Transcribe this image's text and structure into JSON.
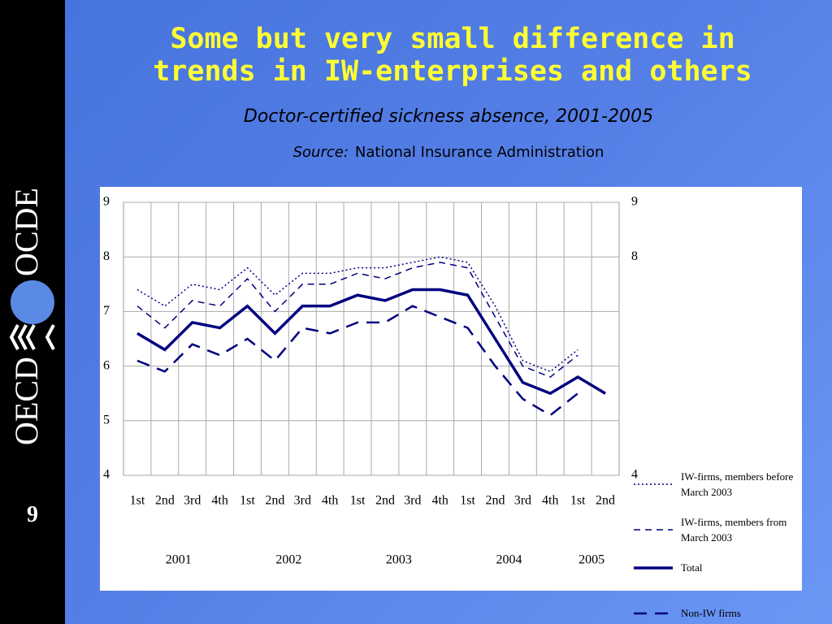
{
  "logo": {
    "left": "OECD",
    "right": "OCDE"
  },
  "slide_number": "9",
  "chart_data": {
    "type": "line",
    "title": "Some but very small difference in trends in IW-enterprises and others",
    "subtitle": "Doctor-certified sickness absence, 2001-2005",
    "source_label": "Source:",
    "source": "National Insurance Administration",
    "category_groups": [
      {
        "name": "2001",
        "categories": [
          "1st",
          "2nd",
          "3rd",
          "4th"
        ]
      },
      {
        "name": "2002",
        "categories": [
          "1st",
          "2nd",
          "3rd",
          "4th"
        ]
      },
      {
        "name": "2003",
        "categories": [
          "1st",
          "2nd",
          "3rd",
          "4th"
        ]
      },
      {
        "name": "2004",
        "categories": [
          "1st",
          "2nd",
          "3rd",
          "4th"
        ]
      },
      {
        "name": "2005",
        "categories": [
          "1st",
          "2nd"
        ]
      }
    ],
    "ylim": [
      4,
      9
    ],
    "yticks": [
      4,
      5,
      6,
      7,
      8,
      9
    ],
    "y2lim": [
      4,
      9
    ],
    "y2ticks": [
      4,
      8,
      9
    ],
    "grid": true,
    "legend": "right",
    "series": [
      {
        "name": "IW-firms, members before March 2003",
        "color": "#000080",
        "dash": "dotted",
        "values": [
          7.4,
          7.1,
          7.5,
          7.4,
          7.8,
          7.3,
          7.7,
          7.7,
          7.8,
          7.8,
          7.9,
          8.0,
          7.9,
          7.1,
          6.1,
          5.9,
          6.3,
          null
        ]
      },
      {
        "name": "IW-firms, members from March 2003",
        "color": "#000080",
        "dash": "dashed",
        "values": [
          7.1,
          6.7,
          7.2,
          7.1,
          7.6,
          7.0,
          7.5,
          7.5,
          7.7,
          7.6,
          7.8,
          7.9,
          7.8,
          6.9,
          6.0,
          5.8,
          6.2,
          null
        ]
      },
      {
        "name": "Total",
        "color": "#000080",
        "dash": "solid",
        "values": [
          6.6,
          6.3,
          6.8,
          6.7,
          7.1,
          6.6,
          7.1,
          7.1,
          7.3,
          7.2,
          7.4,
          7.4,
          7.3,
          6.5,
          5.7,
          5.5,
          5.8,
          5.5
        ]
      },
      {
        "name": "Non-IW firms",
        "color": "#000080",
        "dash": "longdash",
        "values": [
          6.1,
          5.9,
          6.4,
          6.2,
          6.5,
          6.1,
          6.7,
          6.6,
          6.8,
          6.8,
          7.1,
          6.9,
          6.7,
          6.0,
          5.4,
          5.1,
          5.5,
          null
        ]
      }
    ]
  }
}
